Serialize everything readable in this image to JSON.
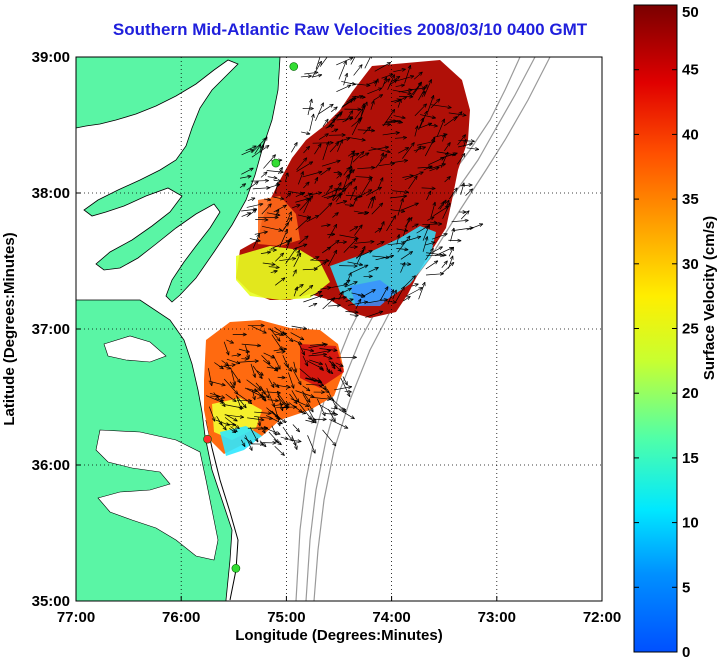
{
  "title": "Southern Mid-Atlantic Raw Velocities 2008/03/10 0400 GMT",
  "map": {
    "xlabel": "Longitude (Degrees:Minutes)",
    "ylabel": "Latitude (Degrees:Minutes)",
    "lon_range": [
      -77,
      -72
    ],
    "lat_range": [
      35,
      39
    ],
    "x_ticks": [
      {
        "value": -77,
        "label": "77:00"
      },
      {
        "value": -76,
        "label": "76:00"
      },
      {
        "value": -75,
        "label": "75:00"
      },
      {
        "value": -74,
        "label": "74:00"
      },
      {
        "value": -73,
        "label": "73:00"
      },
      {
        "value": -72,
        "label": "72:00"
      }
    ],
    "y_ticks": [
      {
        "value": 39,
        "label": "39:00"
      },
      {
        "value": 38,
        "label": "38:00"
      },
      {
        "value": 37,
        "label": "37:00"
      },
      {
        "value": 36,
        "label": "36:00"
      },
      {
        "value": 35,
        "label": "35:00"
      }
    ],
    "grid": "dotted",
    "land_color": "#5af5a5",
    "ocean_color": "#ffffff",
    "bathymetry_color": "#9a9a9a",
    "arrow_color": "#000000",
    "stations": [
      {
        "lon": -74.93,
        "lat": 38.93,
        "color": "#33dd33"
      },
      {
        "lon": -75.1,
        "lat": 38.22,
        "color": "#33dd33"
      },
      {
        "lon": -75.75,
        "lat": 36.19,
        "color": "#ff2a2a"
      },
      {
        "lon": -75.48,
        "lat": 35.24,
        "color": "#33dd33"
      }
    ]
  },
  "colorbar": {
    "label": "Surface Velocity (cm/s)",
    "units": "cm/s",
    "range": [
      0,
      50
    ],
    "ticks": [
      "0",
      "5",
      "10",
      "15",
      "20",
      "25",
      "30",
      "35",
      "40",
      "45",
      "50"
    ]
  }
}
